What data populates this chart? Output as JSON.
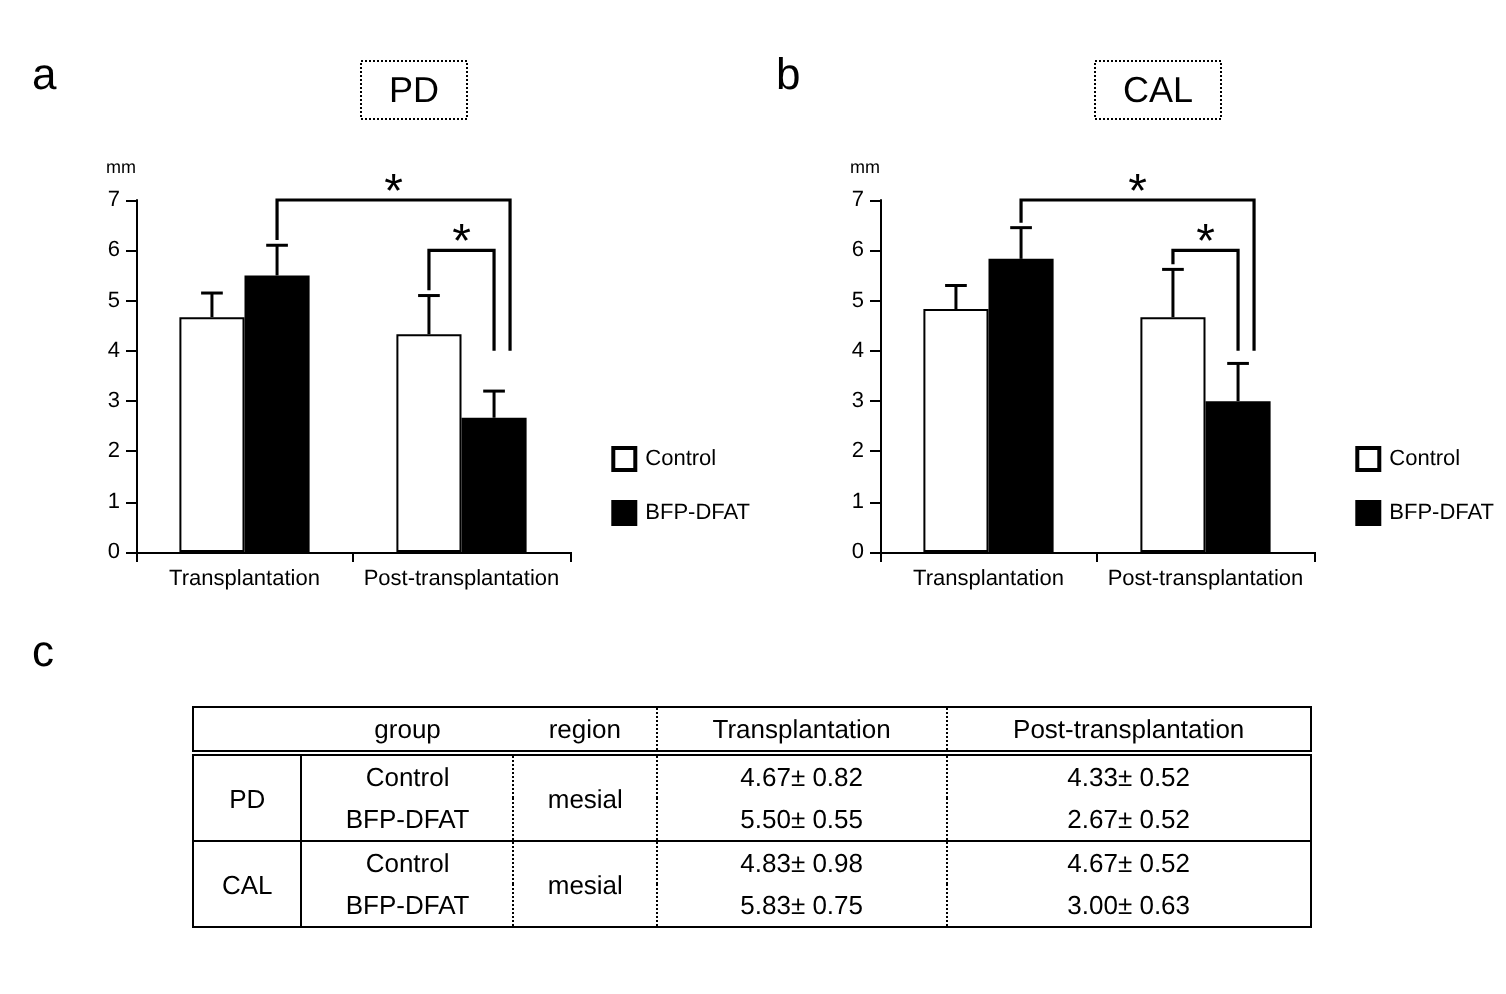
{
  "chart_data": [
    {
      "type": "bar",
      "title": "PD",
      "ylabel": "mm",
      "annotations": [
        "a",
        "*",
        "*"
      ],
      "categories": [
        "Transplantation",
        "Post-transplantation"
      ],
      "ylim": [
        0,
        7
      ],
      "yticks": [
        0,
        1,
        2,
        3,
        4,
        5,
        6,
        7
      ],
      "grid": false,
      "legend": "right",
      "series": [
        {
          "name": "Control",
          "color": "#ffffff",
          "values": [
            4.67,
            4.33
          ],
          "errors": [
            [
              4.67,
              5.15
            ],
            [
              4.33,
              5.1
            ]
          ],
          "value_labels": [
            "4.67± 0.82",
            "4.33± 0.52"
          ]
        },
        {
          "name": "BFP-DFAT",
          "color": "#000000",
          "values": [
            5.5,
            2.67
          ],
          "errors": [
            [
              5.5,
              6.1
            ],
            [
              2.67,
              3.2
            ]
          ],
          "value_labels": [
            "5.50± 0.55",
            "2.67± 0.52"
          ]
        }
      ]
    },
    {
      "type": "bar",
      "title": "CAL",
      "ylabel": "mm",
      "annotations": [
        "b",
        "*",
        "*"
      ],
      "categories": [
        "Transplantation",
        "Post-transplantation"
      ],
      "ylim": [
        0,
        7
      ],
      "yticks": [
        0,
        1,
        2,
        3,
        4,
        5,
        6,
        7
      ],
      "grid": false,
      "legend": "right",
      "series": [
        {
          "name": "Control",
          "color": "#ffffff",
          "values": [
            4.83,
            4.67
          ],
          "errors": [
            [
              4.83,
              5.3
            ],
            [
              4.67,
              5.62
            ]
          ],
          "value_labels": [
            "4.83± 0.98",
            "4.67± 0.52"
          ]
        },
        {
          "name": "BFP-DFAT",
          "color": "#000000",
          "values": [
            5.83,
            3.0
          ],
          "errors": [
            [
              5.83,
              6.45
            ],
            [
              3.0,
              3.75
            ]
          ],
          "value_labels": [
            "5.83± 0.75",
            "3.00± 0.63"
          ]
        }
      ]
    },
    {
      "type": "other",
      "title": "c",
      "annotations": [
        "group",
        "region",
        "mesial",
        "mesial"
      ]
    }
  ]
}
